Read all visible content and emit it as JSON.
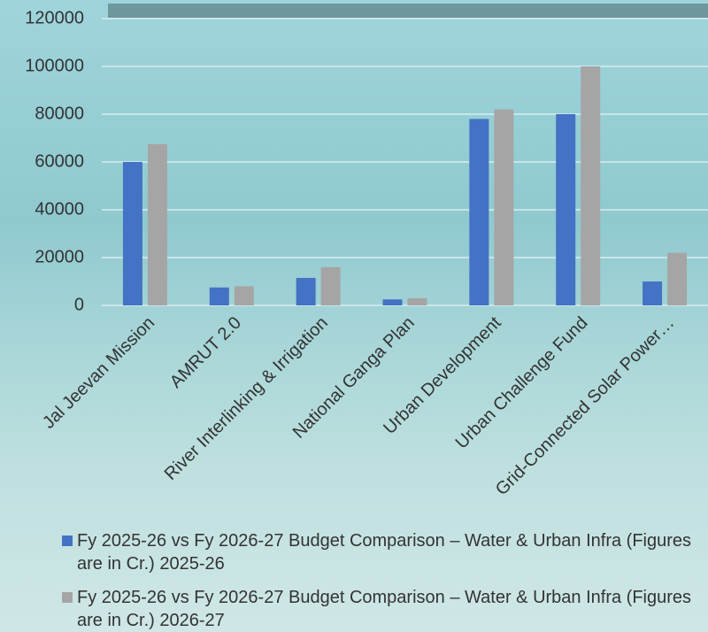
{
  "chart_data": {
    "type": "bar",
    "categories": [
      "Jal Jeevan Mission",
      "AMRUT 2.0",
      "River Interlinking & Irrigation",
      "National Ganga Plan",
      "Urban Development",
      "Urban Challenge Fund",
      "Grid-Connected Solar Power…"
    ],
    "series": [
      {
        "name": "Fy 2025-26 vs Fy 2026-27 Budget Comparison – Water & Urban Infra (Figures are in Cr.) 2025-26",
        "color": "#4472c4",
        "values": [
          60000,
          7500,
          11500,
          2500,
          78000,
          80000,
          10000
        ]
      },
      {
        "name": "Fy 2025-26 vs Fy 2026-27 Budget Comparison – Water & Urban Infra (Figures are in Cr.) 2026-27",
        "color": "#a5a5a5",
        "values": [
          67500,
          8000,
          16000,
          3000,
          82000,
          100000,
          22000
        ]
      }
    ],
    "ylim": [
      0,
      120000
    ],
    "yticks": [
      0,
      20000,
      40000,
      60000,
      80000,
      100000,
      120000
    ],
    "grid": true
  }
}
